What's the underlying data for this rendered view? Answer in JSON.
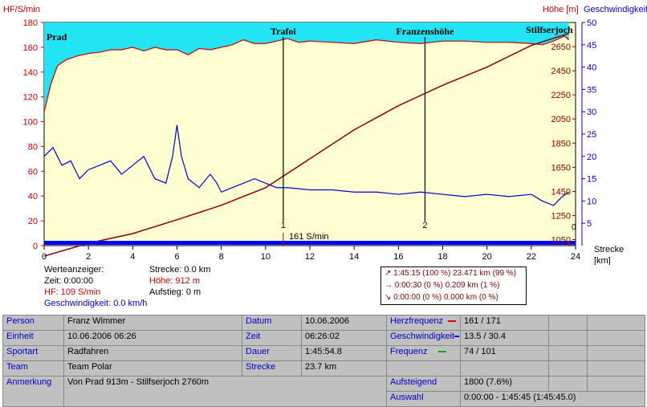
{
  "chart_data": {
    "type": "line",
    "axes": {
      "left_label": "HF/S/min",
      "right_label_altitude": "Höhe [m]",
      "right_label_speed": "Geschwindigkeit",
      "x_label_1": "Strecke",
      "x_label_2": "[km]",
      "x_range": [
        0,
        24
      ],
      "x_ticks": [
        "0",
        "2",
        "4",
        "6",
        "8",
        "10",
        "12",
        "14",
        "16",
        "18",
        "20",
        "22",
        "24"
      ],
      "left_range": [
        0,
        180
      ],
      "left_ticks": [
        "0",
        "20",
        "40",
        "60",
        "80",
        "100",
        "120",
        "140",
        "160",
        "180"
      ],
      "speed_range": [
        0,
        50
      ],
      "speed_ticks": [
        "5",
        "10",
        "15",
        "20",
        "25",
        "30",
        "35",
        "40",
        "45",
        "50"
      ],
      "altitude_ticks": [
        "1050",
        "1250",
        "1450",
        "1650",
        "1850",
        "2050",
        "2250",
        "2450",
        "2650"
      ]
    },
    "series": [
      {
        "key": "hf",
        "color": "#cc0000",
        "x": [
          0,
          0.3,
          0.6,
          1,
          1.5,
          2,
          2.5,
          3,
          3.5,
          4,
          4.5,
          5,
          5.5,
          6,
          6.5,
          7,
          7.5,
          8,
          8.5,
          9,
          9.5,
          10,
          10.5,
          11,
          11.5,
          12,
          13,
          14,
          15,
          16,
          17,
          18,
          19,
          20,
          21,
          22,
          22.5,
          23,
          23.5,
          23.7
        ],
        "y": [
          108,
          130,
          145,
          150,
          153,
          155,
          156,
          158,
          158,
          160,
          157,
          160,
          158,
          158,
          154,
          159,
          158,
          160,
          162,
          166,
          163,
          163,
          165,
          167,
          164,
          165,
          164,
          163,
          166,
          164,
          163,
          165,
          165,
          164,
          164,
          163,
          162,
          165,
          169,
          166
        ]
      },
      {
        "key": "speed",
        "color": "#0000cc",
        "x": [
          0,
          0.4,
          0.8,
          1.2,
          1.6,
          2,
          2.5,
          3,
          3.5,
          4,
          4.5,
          5,
          5.5,
          5.8,
          6,
          6.2,
          6.5,
          7,
          7.5,
          7.8,
          8,
          8.5,
          9,
          9.5,
          10,
          10.5,
          11,
          12,
          13,
          14,
          15,
          16,
          17,
          18,
          19,
          20,
          21,
          22,
          22.5,
          23,
          23.4,
          23.7
        ],
        "y": [
          20,
          22,
          18,
          19,
          15,
          17,
          18,
          19,
          16,
          18,
          20,
          15,
          14,
          20,
          27,
          20,
          15,
          13,
          16,
          14,
          12,
          13,
          14,
          15,
          14,
          13,
          13,
          12.5,
          12.5,
          12,
          12,
          11.5,
          12,
          11.5,
          11,
          11.5,
          11,
          11.5,
          10,
          9,
          11,
          12
        ]
      },
      {
        "key": "altitude",
        "color": "#8b0000",
        "x": [
          0,
          2,
          4,
          6,
          8,
          10,
          12,
          14,
          16,
          18,
          20,
          22,
          23.7
        ],
        "y": [
          913,
          1020,
          1100,
          1215,
          1335,
          1480,
          1720,
          1960,
          2160,
          2330,
          2480,
          2660,
          2760
        ]
      }
    ],
    "markers": [
      {
        "x": 10.8,
        "label": "Trafoi",
        "num": "1"
      },
      {
        "x": 17.2,
        "label": "Franzenshöhe",
        "num": "2"
      }
    ],
    "place_labels": [
      "Prad",
      "Stilfserjoch"
    ],
    "cursor_label": "161 S/min",
    "edge_label": "0"
  },
  "readout": {
    "title": "Werteanzeiger:",
    "zeit": "Zeit: 0:00:00",
    "hf": "HF: 109 S/min",
    "speed": "Geschwindigkeit: 0.0 km/h",
    "strecke": "Strecke: 0.0 km",
    "hoehe": "Höhe: 912 m",
    "aufstieg": "Aufstieg: 0 m"
  },
  "summary": [
    "↗ 1:45:15 (100 %)  23.471 km   (99 %)",
    "→ 0:00:30     (0 %)   0.209 km     (1 %)",
    "↘ 0:00:00     (0 %)   0.000 km     (0 %)"
  ],
  "table": {
    "rows": [
      [
        "Person",
        "Franz Wimmer",
        "Datum",
        "10.06.2006",
        "Herzfrequenz",
        "161 / 171"
      ],
      [
        "Einheit",
        "10.06.2006 06:26",
        "Zeit",
        "06:26:02",
        "Geschwindigkeit",
        "13.5 / 30.4"
      ],
      [
        "Sportart",
        "Radfahren",
        "Dauer",
        "1:45:54.8",
        "Frequenz",
        "74 / 101"
      ],
      [
        "Team",
        "Team Polar",
        "Strecke",
        "23.7 km",
        "",
        ""
      ],
      [
        "Anmerkung",
        "Von Prad 913m - Stilfserjoch 2760m",
        "",
        "",
        "Aufsteigend",
        "1800 (7.6%)"
      ],
      [
        "",
        "",
        "",
        "",
        "Auswahl",
        "0:00:00 - 1:45:45 (1:45:45.0)"
      ]
    ],
    "indicator_colors": {
      "hf": "#cc0000",
      "speed": "#0000cc",
      "freq": "#00aa00"
    }
  }
}
